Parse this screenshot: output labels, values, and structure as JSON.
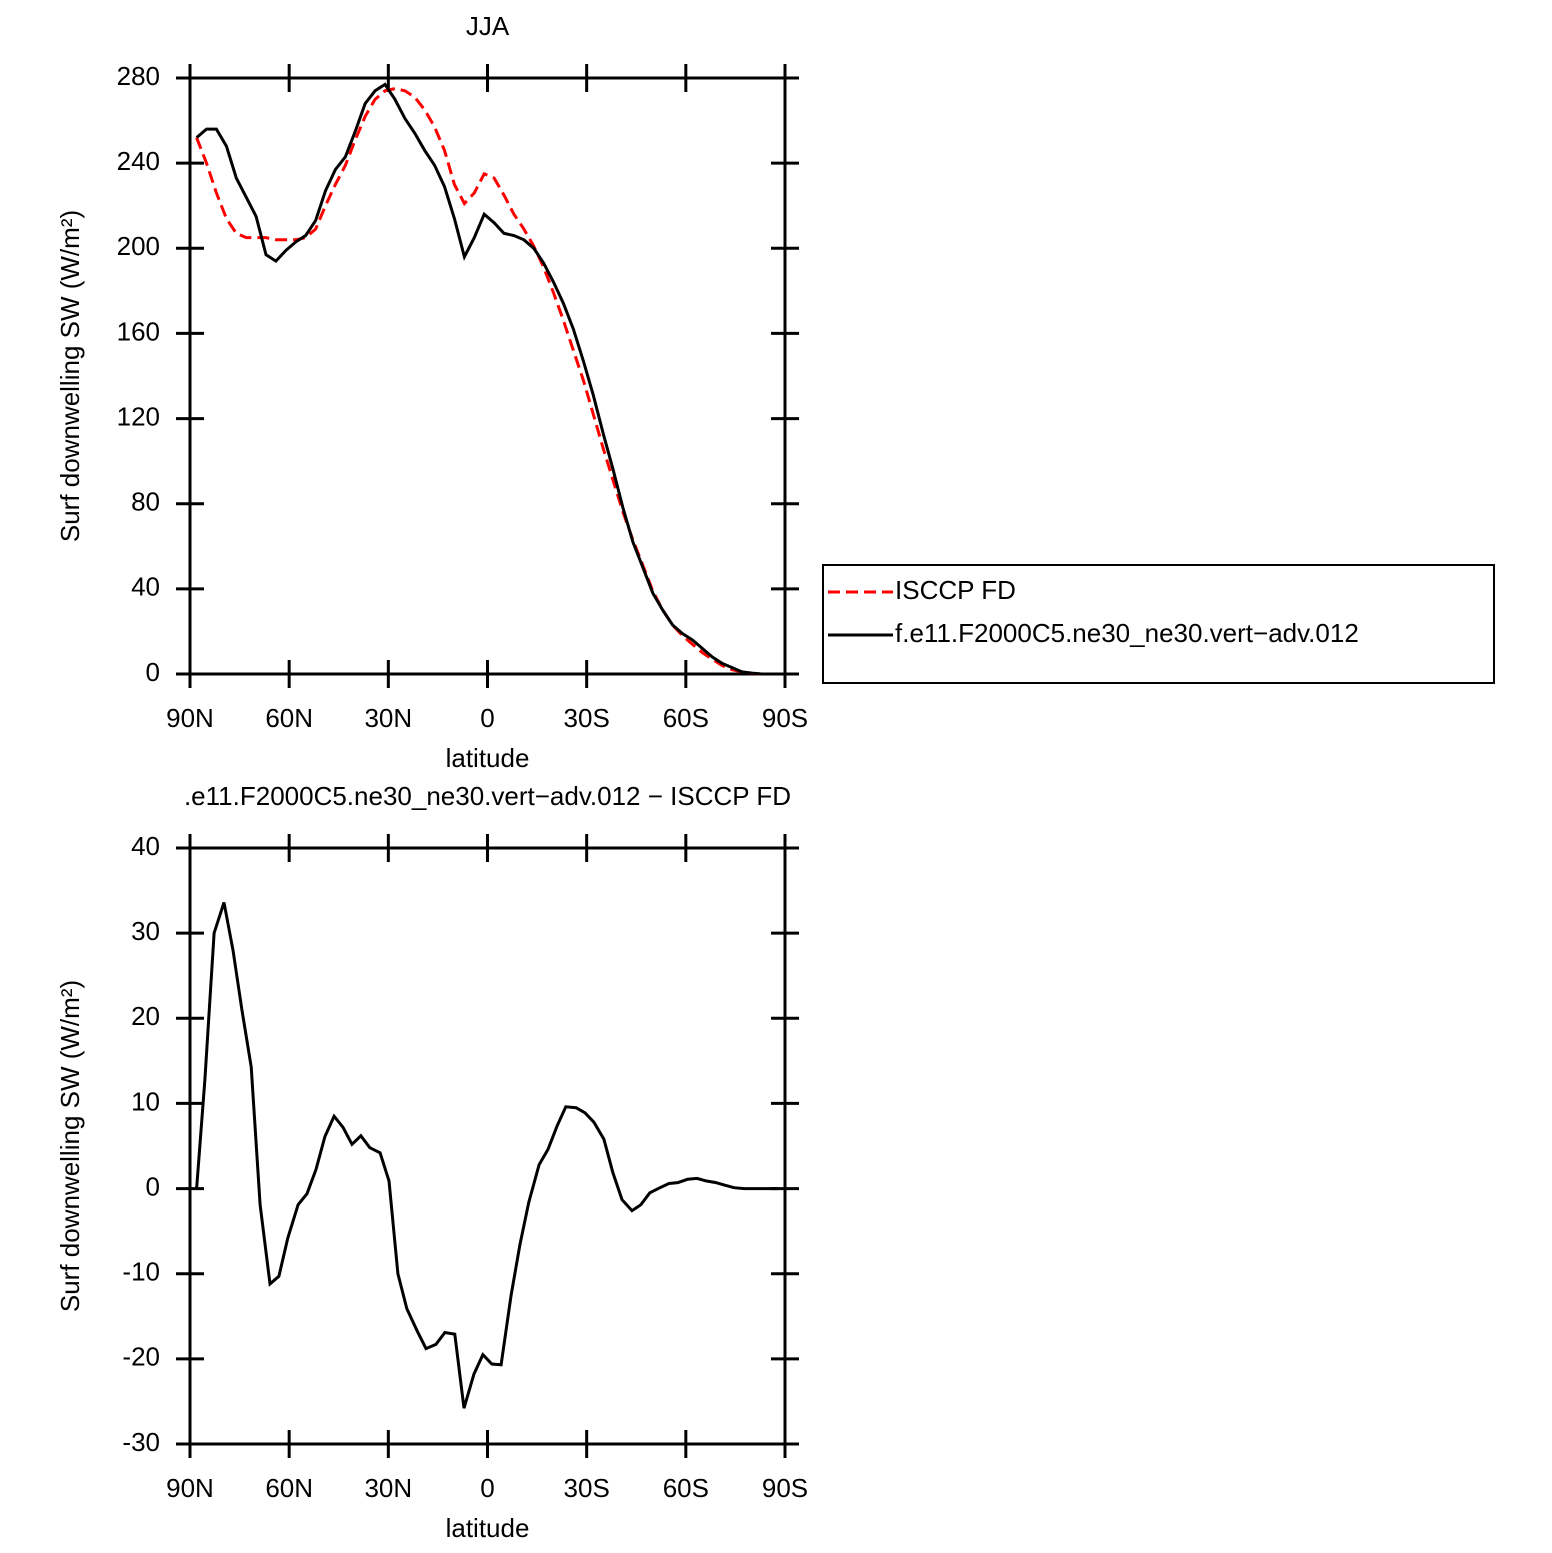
{
  "chart_data": [
    {
      "type": "line",
      "title": "JJA",
      "xlabel": "latitude",
      "ylabel": "Surf downwelling SW (W/m²)",
      "x": [
        88,
        85,
        82,
        79,
        76,
        73,
        70,
        67,
        64,
        61,
        58,
        55,
        52,
        49,
        46,
        43,
        40,
        37,
        34,
        31,
        28,
        25,
        22,
        19,
        16,
        13,
        10,
        7,
        4,
        1,
        -2,
        -5,
        -8,
        -11,
        -14,
        -17,
        -20,
        -23,
        -26,
        -29,
        -32,
        -35,
        -38,
        -41,
        -44,
        -47,
        -50,
        -53,
        -56,
        -59,
        -62,
        -65,
        -68,
        -71,
        -74,
        -77,
        -80,
        -83,
        -86,
        -89
      ],
      "series": [
        {
          "name": "ISCCP FD",
          "color": "#ff0000",
          "linestyle": "dashed",
          "values": [
            252,
            240,
            226,
            214,
            207,
            205,
            205,
            205,
            204,
            204,
            204,
            205,
            209,
            220,
            230,
            239,
            251,
            262,
            270,
            274,
            275,
            274,
            271,
            265,
            257,
            246,
            230,
            221,
            226,
            235,
            233,
            225,
            216,
            209,
            201,
            191,
            179,
            166,
            152,
            138,
            122,
            106,
            91,
            76,
            63,
            51,
            39,
            30,
            23,
            18,
            14,
            10,
            7,
            4,
            2,
            1,
            0.3,
            0,
            0,
            0
          ]
        },
        {
          "name": "f.e11.F2000C5.ne30_ne30.vert−adv.012",
          "color": "#000000",
          "linestyle": "solid",
          "values": [
            252,
            256,
            256,
            248,
            233,
            224,
            215,
            197,
            194,
            199,
            203,
            206,
            213,
            227,
            237,
            243,
            255,
            268,
            274,
            277,
            270,
            261,
            254,
            246,
            239,
            229,
            214,
            196,
            205,
            216,
            212,
            207,
            206,
            204,
            200,
            193,
            184,
            174,
            162,
            147,
            131,
            113,
            96,
            78,
            62,
            50,
            38,
            30,
            23,
            19,
            16,
            12,
            8,
            5,
            3,
            1,
            0.4,
            0,
            0,
            0
          ]
        }
      ],
      "xlim": [
        90,
        -90
      ],
      "xticks": [
        {
          "value": 90,
          "label": "90N"
        },
        {
          "value": 60,
          "label": "60N"
        },
        {
          "value": 30,
          "label": "30N"
        },
        0,
        {
          "value": -30,
          "label": "30S"
        },
        {
          "value": -60,
          "label": "60S"
        },
        {
          "value": -90,
          "label": "90S"
        }
      ],
      "ylim": [
        0,
        280
      ],
      "yticks": [
        0,
        40,
        80,
        120,
        160,
        200,
        240,
        280
      ],
      "legend": "right"
    },
    {
      "type": "line",
      "title": ".e11.F2000C5.ne30_ne30.vert−adv.012 − ISCCP FD",
      "xlabel": "latitude",
      "ylabel": "Surf downwelling SW (W/m²)",
      "x": [
        88,
        85.5,
        82.7,
        79.7,
        77,
        74.3,
        71.5,
        68.8,
        65.8,
        63.1,
        60.4,
        57.3,
        54.6,
        51.9,
        49.2,
        46.4,
        43.7,
        41,
        38.3,
        35.6,
        32.5,
        29.8,
        27.1,
        24.4,
        21.3,
        18.6,
        15.6,
        12.9,
        9.9,
        7.1,
        4.1,
        1.4,
        -1.3,
        -4.1,
        -7.1,
        -9.8,
        -12.5,
        -15.6,
        -18.3,
        -21,
        -23.7,
        -26.8,
        -29.5,
        -32.2,
        -35.2,
        -37.9,
        -40.7,
        -43.7,
        -46.4,
        -49.1,
        -52.2,
        -54.9,
        -57.6,
        -60.6,
        -63.4,
        -66.1,
        -69.1,
        -71.8,
        -74.6,
        -77.6,
        -87.9
      ],
      "series": [
        {
          "name": null,
          "color": "#000000",
          "linestyle": "solid",
          "values": [
            0,
            12.8,
            30,
            33.6,
            28,
            21,
            14.3,
            -1.9,
            -11.2,
            -10.3,
            -5.8,
            -1.9,
            -0.6,
            2.2,
            6.1,
            8.5,
            7.2,
            5.2,
            6.2,
            4.8,
            4.2,
            0.9,
            -10,
            -14.1,
            -16.7,
            -18.8,
            -18.3,
            -16.9,
            -17.1,
            -25.8,
            -21.8,
            -19.5,
            -20.6,
            -20.7,
            -12.6,
            -6.6,
            -1.6,
            2.8,
            4.6,
            7.3,
            9.6,
            9.5,
            8.9,
            7.8,
            5.8,
            1.9,
            -1.3,
            -2.6,
            -1.9,
            -0.5,
            0.1,
            0.6,
            0.7,
            1.1,
            1.2,
            0.9,
            0.7,
            0.4,
            0.1,
            0,
            0
          ]
        }
      ],
      "xlim": [
        90,
        -90
      ],
      "xticks": [
        {
          "value": 90,
          "label": "90N"
        },
        {
          "value": 60,
          "label": "60N"
        },
        {
          "value": 30,
          "label": "30N"
        },
        0,
        {
          "value": -30,
          "label": "30S"
        },
        {
          "value": -60,
          "label": "60S"
        },
        {
          "value": -90,
          "label": "90S"
        }
      ],
      "ylim": [
        -30,
        40
      ],
      "yticks": [
        -30,
        -20,
        -10,
        0,
        10,
        20,
        30,
        40
      ]
    }
  ]
}
